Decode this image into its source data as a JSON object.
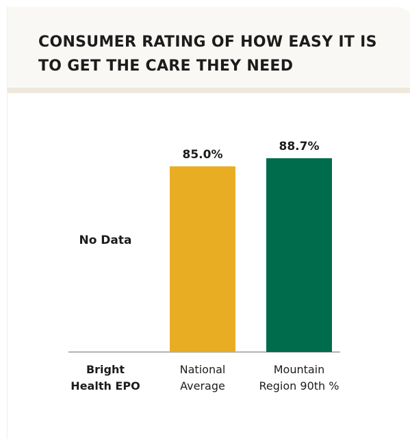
{
  "chart_data": {
    "type": "bar",
    "title": "CONSUMER RATING OF HOW EASY IT IS TO GET THE CARE THEY NEED",
    "categories": [
      "Bright Health EPO",
      "National Average",
      "Mountain Region 90th %"
    ],
    "values": [
      null,
      85.0,
      88.7
    ],
    "value_labels": [
      "No Data",
      "85.0%",
      "88.7%"
    ],
    "colors": [
      "#999999",
      "#e9ad23",
      "#006c4c"
    ]
  }
}
